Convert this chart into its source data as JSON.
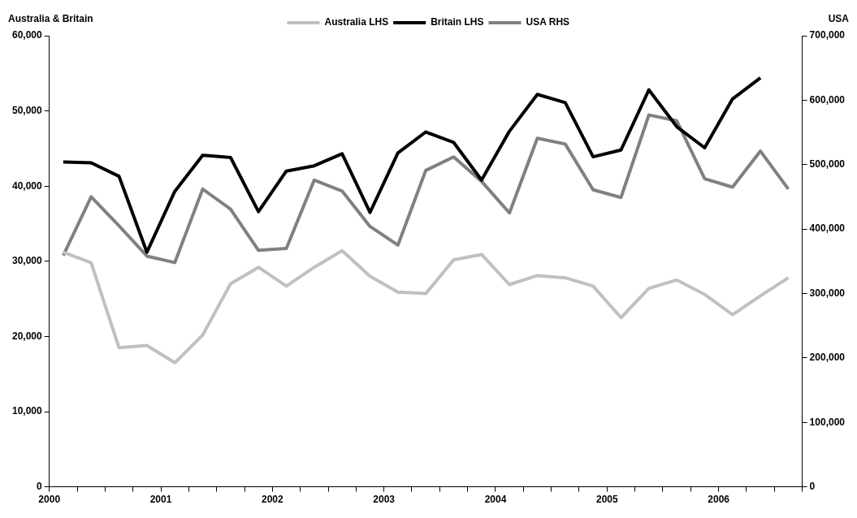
{
  "chart_data": {
    "type": "line",
    "ylabel": "Australia & Britain",
    "y2label": "USA",
    "x": [
      2000.125,
      2000.375,
      2000.625,
      2000.875,
      2001.125,
      2001.375,
      2001.625,
      2001.875,
      2002.125,
      2002.375,
      2002.625,
      2002.875,
      2003.125,
      2003.375,
      2003.625,
      2003.875,
      2004.125,
      2004.375,
      2004.625,
      2004.875,
      2005.125,
      2005.375,
      2005.625,
      2005.875,
      2006.125,
      2006.375,
      2006.625
    ],
    "series": [
      {
        "name": "Australia LHS",
        "color": "#c0c0c0",
        "values": [
          31200,
          29800,
          18500,
          18800,
          16500,
          20200,
          27000,
          29200,
          26700,
          29200,
          31400,
          28000,
          25900,
          25700,
          30200,
          30900,
          26900,
          28100,
          27800,
          26700,
          22500,
          26400,
          27500,
          25600,
          22900,
          25400,
          27800
        ]
      },
      {
        "name": "Britain LHS",
        "color": "#000000",
        "values": [
          43200,
          43100,
          41300,
          31200,
          39300,
          44100,
          43800,
          36600,
          42000,
          42700,
          44300,
          36500,
          44400,
          47200,
          45800,
          40800,
          47300,
          52200,
          51100,
          43900,
          44800,
          52800,
          47900,
          45100,
          51600,
          54400,
          null
        ]
      },
      {
        "name": "USA RHS",
        "color": "#808080",
        "axis": "y2",
        "values": [
          359000,
          450000,
          405000,
          358000,
          348000,
          462000,
          431000,
          367000,
          370000,
          476000,
          459000,
          404000,
          375000,
          491000,
          512000,
          474000,
          425000,
          541000,
          532000,
          461000,
          449000,
          577000,
          568000,
          478000,
          465000,
          521000,
          462000
        ]
      }
    ],
    "xlim": [
      2000,
      2006.75
    ],
    "xticks": [
      2000,
      {
        "value": 2000.25,
        "label": null
      },
      {
        "value": 2000.5,
        "label": null
      },
      {
        "value": 2000.75,
        "label": null
      },
      2001,
      {
        "value": 2001.25,
        "label": null
      },
      {
        "value": 2001.5,
        "label": null
      },
      {
        "value": 2001.75,
        "label": null
      },
      2002,
      {
        "value": 2002.25,
        "label": null
      },
      {
        "value": 2002.5,
        "label": null
      },
      {
        "value": 2002.75,
        "label": null
      },
      2003,
      {
        "value": 2003.25,
        "label": null
      },
      {
        "value": 2003.5,
        "label": null
      },
      {
        "value": 2003.75,
        "label": null
      },
      2004,
      {
        "value": 2004.25,
        "label": null
      },
      {
        "value": 2004.5,
        "label": null
      },
      {
        "value": 2004.75,
        "label": null
      },
      2005,
      {
        "value": 2005.25,
        "label": null
      },
      {
        "value": 2005.5,
        "label": null
      },
      {
        "value": 2005.75,
        "label": null
      },
      2006,
      {
        "value": 2006.25,
        "label": null
      },
      {
        "value": 2006.5,
        "label": null
      },
      {
        "value": 2006.75,
        "label": null
      }
    ],
    "ylim": [
      0,
      60000
    ],
    "yticks": [
      {
        "value": 0,
        "label": "0"
      },
      {
        "value": 10000,
        "label": "10,000"
      },
      {
        "value": 20000,
        "label": "20,000"
      },
      {
        "value": 30000,
        "label": "30,000"
      },
      {
        "value": 40000,
        "label": "40,000"
      },
      {
        "value": 50000,
        "label": "50,000"
      },
      {
        "value": 60000,
        "label": "60,000"
      }
    ],
    "y2lim": [
      0,
      700000
    ],
    "y2ticks": [
      {
        "value": 0,
        "label": "0"
      },
      {
        "value": 100000,
        "label": "100,000"
      },
      {
        "value": 200000,
        "label": "200,000"
      },
      {
        "value": 300000,
        "label": "300,000"
      },
      {
        "value": 400000,
        "label": "400,000"
      },
      {
        "value": 500000,
        "label": "500,000"
      },
      {
        "value": 600000,
        "label": "600,000"
      },
      {
        "value": 700000,
        "label": "700,000"
      }
    ],
    "legend": "top",
    "grid": false,
    "marker": "none",
    "line_style": "solid"
  }
}
